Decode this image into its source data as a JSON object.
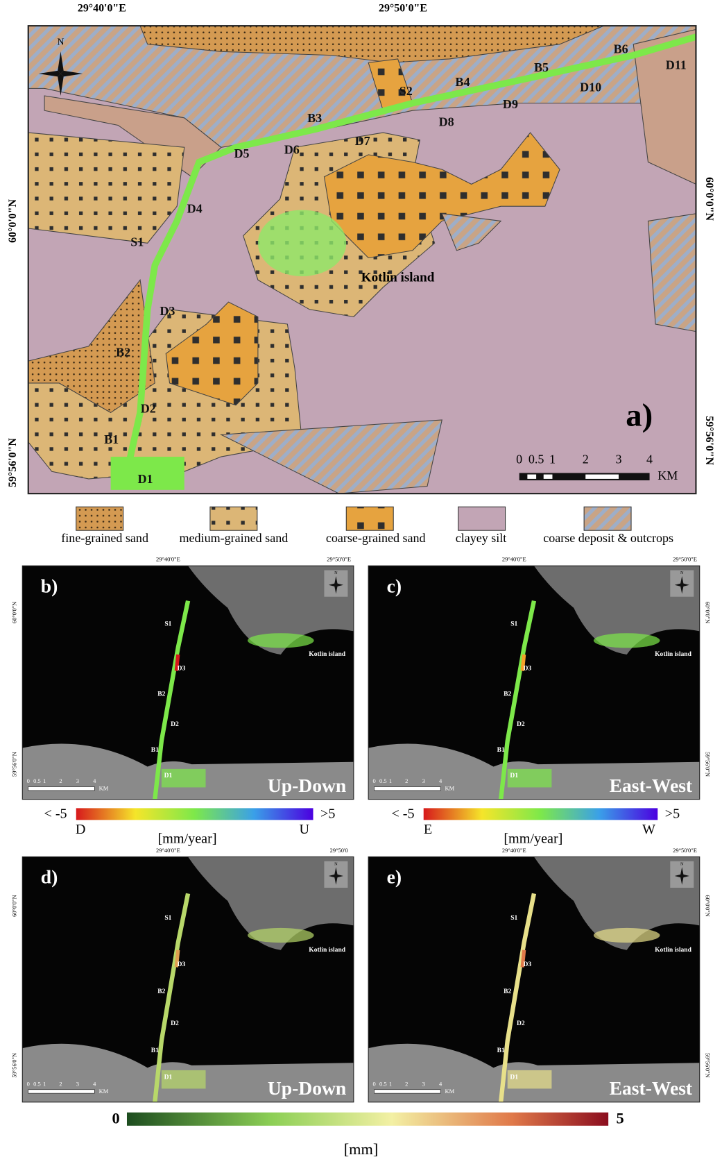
{
  "map_a": {
    "label": "a)",
    "north": "N",
    "lon_labels": [
      "29°40'0\"E",
      "29°50'0\"E"
    ],
    "lat_labels": [
      "60°0'0\"N",
      "59°56'0\"N"
    ],
    "sites": [
      "B6",
      "D11",
      "B5",
      "D10",
      "B4",
      "S2",
      "D9",
      "D8",
      "B3",
      "D7",
      "D6",
      "D5",
      "D4",
      "S1",
      "D3",
      "B2",
      "D2",
      "B1",
      "D1"
    ],
    "place": "Kotlin island",
    "scale": [
      "0",
      "0.5",
      "1",
      "2",
      "3",
      "4"
    ],
    "scale_unit": "KM"
  },
  "legend": [
    "fine-grained sand",
    "medium-grained sand",
    "coarse-grained sand",
    "clayey silt",
    "coarse deposit & outcrops"
  ],
  "panels": [
    {
      "label": "b)",
      "component": "Up-Down",
      "lon_labels": [
        "29°40'0\"E",
        "29°50'0\"E"
      ],
      "lat_labels": [
        "60°0'0\"N",
        "59°56'0\"N"
      ]
    },
    {
      "label": "c)",
      "component": "East-West",
      "lon_labels": [
        "29°40'0\"E",
        "29°50'0\"E"
      ],
      "lat_labels": [
        "60°0'0\"N",
        "59°56'0\"N"
      ]
    },
    {
      "label": "d)",
      "component": "Up-Down",
      "lon_labels": [
        "29°40'0\"E",
        "29°50'0"
      ],
      "lat_labels": [
        "60°0'0\"N",
        "59°56'0\"N"
      ]
    },
    {
      "label": "e)",
      "component": "East-West",
      "lon_labels": [
        "29°40'0\"E",
        "29°50'0\"E"
      ],
      "lat_labels": [
        "60°0'0\"N",
        "59°56'0\"N"
      ]
    }
  ],
  "panel_sites": [
    "S1",
    "D3",
    "B2",
    "D2",
    "B1",
    "D1"
  ],
  "panel_place": "Kotlin island",
  "panel_north": "N",
  "panel_scale": [
    "0",
    "0.5",
    "1",
    "2",
    "3",
    "4"
  ],
  "panel_scale_unit": "KM",
  "velocity_colorbars": [
    {
      "min": "< -5",
      "max": ">5",
      "min_dir": "D",
      "max_dir": "U",
      "unit": "[mm/year]"
    },
    {
      "min": "< -5",
      "max": ">5",
      "min_dir": "E",
      "max_dir": "W",
      "unit": "[mm/year]"
    }
  ],
  "displacement_colorbar": {
    "min": "0",
    "max": "5",
    "unit": "[mm]"
  }
}
